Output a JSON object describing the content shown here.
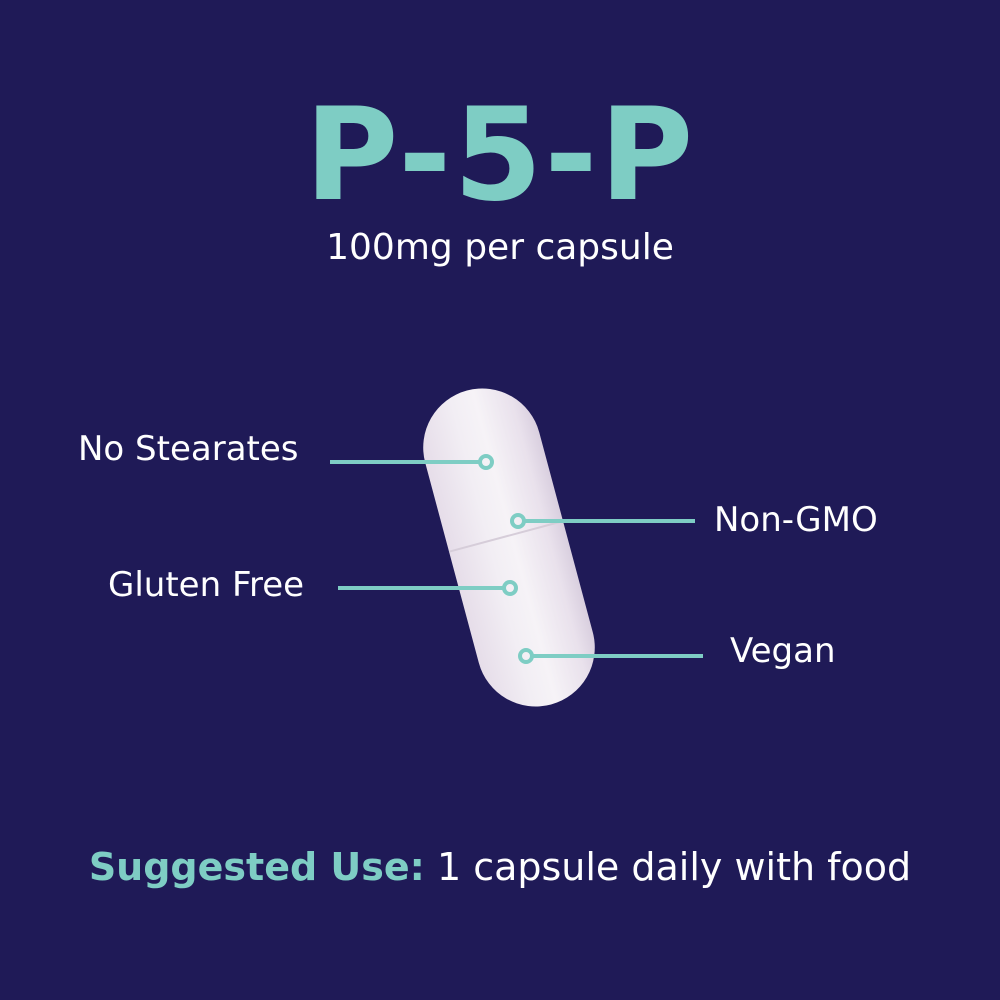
{
  "title": "P-5-P",
  "subtitle": "100mg per capsule",
  "features": [
    {
      "label": "No Stearates"
    },
    {
      "label": "Non-GMO"
    },
    {
      "label": "Gluten Free"
    },
    {
      "label": "Vegan"
    }
  ],
  "footer": {
    "label": "Suggested Use:",
    "text": "1 capsule daily with food"
  },
  "colors": {
    "background": "#1f1a57",
    "accent": "#7ecdc4",
    "text": "#ffffff",
    "capsule": "#f2eef4"
  }
}
